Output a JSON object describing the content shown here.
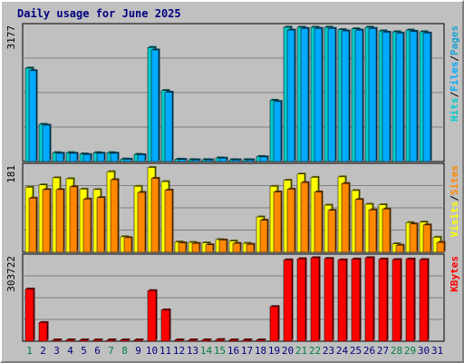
{
  "chart_data": {
    "type": "bar",
    "title": "Daily usage for June 2025",
    "categories": [
      "1",
      "2",
      "3",
      "4",
      "5",
      "6",
      "7",
      "8",
      "9",
      "10",
      "11",
      "12",
      "13",
      "14",
      "15",
      "16",
      "17",
      "18",
      "19",
      "20",
      "21",
      "22",
      "23",
      "24",
      "25",
      "26",
      "27",
      "28",
      "29",
      "30",
      "31"
    ],
    "weekend_days": [
      "1",
      "7",
      "8",
      "14",
      "15",
      "21",
      "22",
      "28",
      "29"
    ],
    "colors": {
      "hits": "#00cccc",
      "files": "#00aaff",
      "pages": "#1aa4d0",
      "visits": "#ffff00",
      "sites": "#ff8800",
      "kbytes": "#ff0000",
      "weekend_tick": "#008040",
      "weekday_tick": "#000080",
      "title": "#000080"
    },
    "panels": [
      {
        "name": "hits-files-pages",
        "ymax_label": "3177",
        "ylim": [
          0,
          3177
        ],
        "axis_labels": [
          {
            "text": "Hits",
            "color": "#00cccc"
          },
          {
            "text": "Files",
            "color": "#00aaff"
          },
          {
            "text": "Pages",
            "color": "#1aa4d0"
          }
        ],
        "series": [
          {
            "name": "Hits",
            "color": "#00cccc",
            "values": [
              2210,
              880,
              210,
              210,
              180,
              210,
              210,
              60,
              170,
              2700,
              1680,
              55,
              45,
              45,
              85,
              45,
              45,
              120,
              1450,
              3177,
              3177,
              3177,
              3177,
              3120,
              3140,
              3177,
              3090,
              3070,
              3110,
              3070,
              0
            ]
          },
          {
            "name": "Files",
            "color": "#00aaff",
            "values": [
              2150,
              860,
              195,
              195,
              165,
              195,
              195,
              55,
              160,
              2640,
              1640,
              50,
              40,
              40,
              80,
              40,
              40,
              110,
              1420,
              3110,
              3150,
              3150,
              3150,
              3090,
              3110,
              3150,
              3060,
              3040,
              3080,
              3040,
              0
            ]
          }
        ]
      },
      {
        "name": "visits-sites",
        "ymax_label": "181",
        "ylim": [
          0,
          181
        ],
        "axis_labels": [
          {
            "text": "Visits",
            "color": "#ffff00"
          },
          {
            "text": "Sites",
            "color": "#ff8800"
          }
        ],
        "series": [
          {
            "name": "Visits",
            "color": "#ffff00",
            "values": [
              138,
              143,
              158,
              156,
              134,
              133,
              171,
              33,
              140,
              180,
              150,
              22,
              21,
              20,
              27,
              24,
              19,
              75,
              140,
              153,
              166,
              159,
              100,
              160,
              131,
              102,
              101,
              18,
              63,
              64,
              32
            ]
          },
          {
            "name": "Sites",
            "color": "#ff8800",
            "values": [
              115,
              133,
              133,
              139,
              113,
              116,
              154,
              31,
              127,
              157,
              132,
              20,
              19,
              16,
              26,
              19,
              17,
              68,
              128,
              134,
              148,
              128,
              89,
              146,
              112,
              90,
              92,
              15,
              60,
              58,
              21
            ]
          }
        ]
      },
      {
        "name": "kbytes",
        "ymax_label": "303722",
        "ylim": [
          0,
          303722
        ],
        "axis_labels": [
          {
            "text": "KBytes",
            "color": "#ff0000"
          }
        ],
        "series": [
          {
            "name": "KBytes",
            "color": "#ff0000",
            "values": [
              190000,
              68000,
              2000,
              2000,
              2000,
              2000,
              2000,
              2000,
              2000,
              184000,
              114000,
              2000,
              2000,
              2000,
              6000,
              2000,
              2000,
              2000,
              126000,
              296000,
              300000,
              303722,
              301000,
              296000,
              299000,
              303722,
              299000,
              297000,
              299000,
              297000,
              0
            ]
          }
        ]
      }
    ]
  }
}
